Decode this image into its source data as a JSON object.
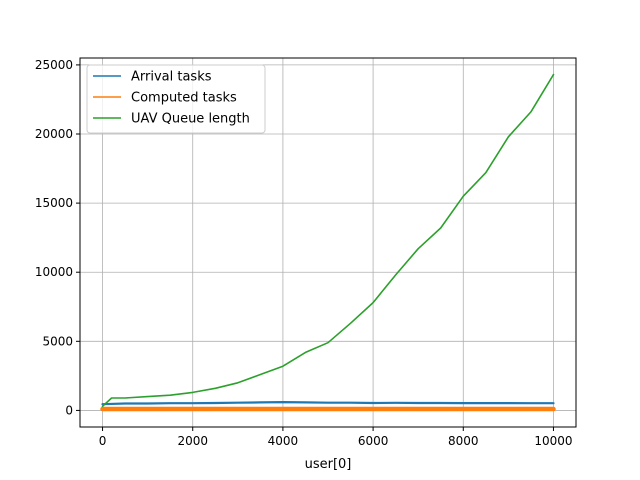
{
  "chart_data": {
    "type": "line",
    "xlabel": "user[0]",
    "ylabel": "",
    "xlim": [
      -500,
      10500
    ],
    "ylim": [
      -1200,
      25500
    ],
    "x_ticks": [
      0,
      2000,
      4000,
      6000,
      8000,
      10000
    ],
    "x_tick_labels": [
      "0",
      "2000",
      "4000",
      "6000",
      "8000",
      "10000"
    ],
    "y_ticks": [
      0,
      5000,
      10000,
      15000,
      20000,
      25000
    ],
    "y_tick_labels": [
      "0",
      "5000",
      "10000",
      "15000",
      "20000",
      "25000"
    ],
    "grid": true,
    "legend_position": "top-left",
    "series": [
      {
        "name": "Arrival tasks",
        "color": "#1f77b4",
        "x": [
          0,
          500,
          1000,
          1500,
          2000,
          2500,
          3000,
          3500,
          4000,
          4500,
          5000,
          5500,
          6000,
          6500,
          7000,
          7500,
          8000,
          8500,
          9000,
          9500,
          10000
        ],
        "y": [
          450,
          500,
          500,
          520,
          520,
          540,
          560,
          580,
          600,
          580,
          560,
          560,
          540,
          550,
          540,
          540,
          530,
          530,
          530,
          520,
          520
        ]
      },
      {
        "name": "Computed tasks",
        "color": "#ff7f0e",
        "x": [
          0,
          500,
          1000,
          1500,
          2000,
          2500,
          3000,
          3500,
          4000,
          4500,
          5000,
          5500,
          6000,
          6500,
          7000,
          7500,
          8000,
          8500,
          9000,
          9500,
          10000
        ],
        "y": [
          100,
          100,
          100,
          100,
          100,
          100,
          100,
          100,
          100,
          100,
          100,
          100,
          100,
          100,
          100,
          100,
          100,
          100,
          100,
          100,
          100
        ]
      },
      {
        "name": "UAV Queue length",
        "color": "#2ca02c",
        "x": [
          0,
          200,
          500,
          1000,
          1500,
          2000,
          2500,
          3000,
          3500,
          4000,
          4500,
          5000,
          5500,
          6000,
          6500,
          7000,
          7500,
          8000,
          8500,
          9000,
          9500,
          10000
        ],
        "y": [
          300,
          900,
          900,
          1000,
          1100,
          1300,
          1600,
          2000,
          2600,
          3200,
          4200,
          4900,
          6300,
          7800,
          9800,
          11700,
          13200,
          15500,
          17200,
          19800,
          21600,
          24300
        ]
      }
    ]
  }
}
